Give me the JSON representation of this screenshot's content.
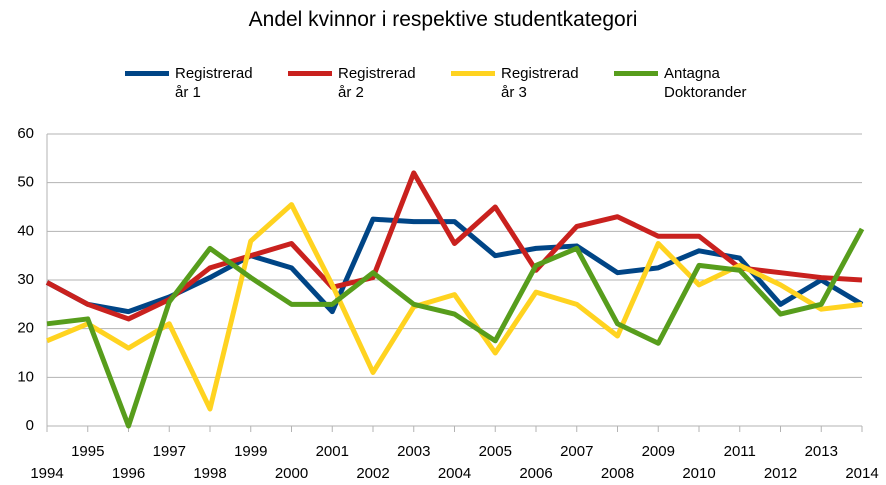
{
  "chart_data": {
    "type": "line",
    "title": "Andel kvinnor i respektive studentkategori",
    "categories": [
      "1994",
      "1995",
      "1996",
      "1997",
      "1998",
      "1999",
      "2000",
      "2001",
      "2002",
      "2003",
      "2004",
      "2005",
      "2006",
      "2007",
      "2008",
      "2009",
      "2010",
      "2011",
      "2012",
      "2013",
      "2014"
    ],
    "series": [
      {
        "name": "Registrerad år 1",
        "color": "#004586",
        "values": [
          29.5,
          25,
          23.5,
          26.5,
          30.5,
          35,
          32.5,
          23.5,
          42.5,
          42,
          42,
          35,
          36.5,
          37,
          31.5,
          32.5,
          36,
          34.5,
          25,
          30,
          25
        ]
      },
      {
        "name": "Registrerad år 2",
        "color": "#c9211e",
        "values": [
          29.5,
          25,
          22,
          26,
          32.5,
          35,
          37.5,
          28.5,
          30.5,
          52,
          37.5,
          45,
          32,
          41,
          43,
          39,
          39,
          32.5,
          31.5,
          30.5,
          30
        ]
      },
      {
        "name": "Registrerad år 3",
        "color": "#ffd320",
        "values": [
          17.5,
          21,
          16,
          21,
          3.5,
          38,
          45.5,
          29,
          11,
          24.5,
          27,
          15,
          27.5,
          25,
          18.5,
          37.5,
          29,
          33,
          29,
          24,
          25
        ]
      },
      {
        "name": "Antagna Doktorander",
        "color": "#579d1c",
        "values": [
          21,
          22,
          0,
          25.5,
          36.5,
          30.5,
          25,
          25,
          31.5,
          25,
          23,
          17.5,
          33,
          36.5,
          21,
          17,
          33,
          32,
          23,
          25,
          40.5
        ]
      }
    ],
    "ylim": [
      0,
      60
    ],
    "yticks": [
      0,
      10,
      20,
      30,
      40,
      50,
      60
    ],
    "grid": true
  }
}
